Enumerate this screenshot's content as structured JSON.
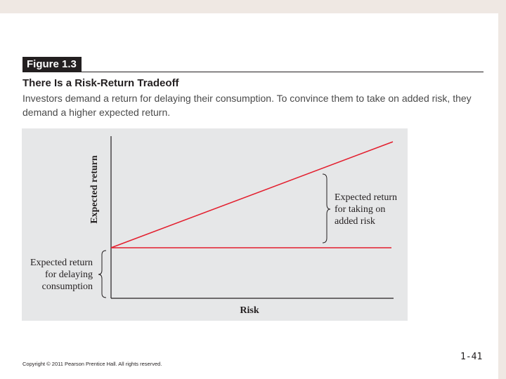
{
  "figure": {
    "label": "Figure 1.3",
    "title": "There Is a Risk-Return Tradeoff",
    "caption": "Investors demand a return for delaying their consumption. To convince them to take on added risk, they demand a higher expected return."
  },
  "diagram": {
    "y_axis_label": "Expected return",
    "x_axis_label": "Risk",
    "left_annotation": [
      "Expected return",
      "for delaying",
      "consumption"
    ],
    "right_annotation": [
      "Expected return",
      "for taking on",
      "added risk"
    ],
    "line_color": "#e31e2d"
  },
  "footer": {
    "copyright": "Copyright © 2011 Pearson Prentice Hall. All rights reserved.",
    "page_number": "1-41"
  }
}
